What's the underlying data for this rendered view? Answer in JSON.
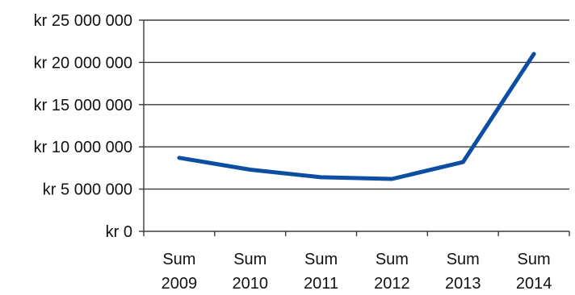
{
  "chart_data": {
    "type": "line",
    "title": "",
    "xlabel": "",
    "ylabel": "",
    "categories": [
      [
        "Sum",
        "2009"
      ],
      [
        "Sum",
        "2010"
      ],
      [
        "Sum",
        "2011"
      ],
      [
        "Sum",
        "2012"
      ],
      [
        "Sum",
        "2013"
      ],
      [
        "Sum",
        "2014"
      ]
    ],
    "y_ticks": [
      {
        "value": 0,
        "label": "kr 0"
      },
      {
        "value": 5000000,
        "label": "kr 5 000 000"
      },
      {
        "value": 10000000,
        "label": "kr 10 000 000"
      },
      {
        "value": 15000000,
        "label": "kr 15 000 000"
      },
      {
        "value": 20000000,
        "label": "kr 20 000 000"
      },
      {
        "value": 25000000,
        "label": "kr 25 000 000"
      }
    ],
    "ylim": [
      0,
      25000000
    ],
    "grid": true,
    "legend": "none",
    "series": [
      {
        "values": [
          8700000,
          7300000,
          6400000,
          6200000,
          8200000,
          21000000
        ],
        "color": "#0b4ea2"
      }
    ],
    "colors": {
      "grid": "#3a3a3a",
      "axis": "#3a3a3a",
      "text": "#111111"
    }
  }
}
